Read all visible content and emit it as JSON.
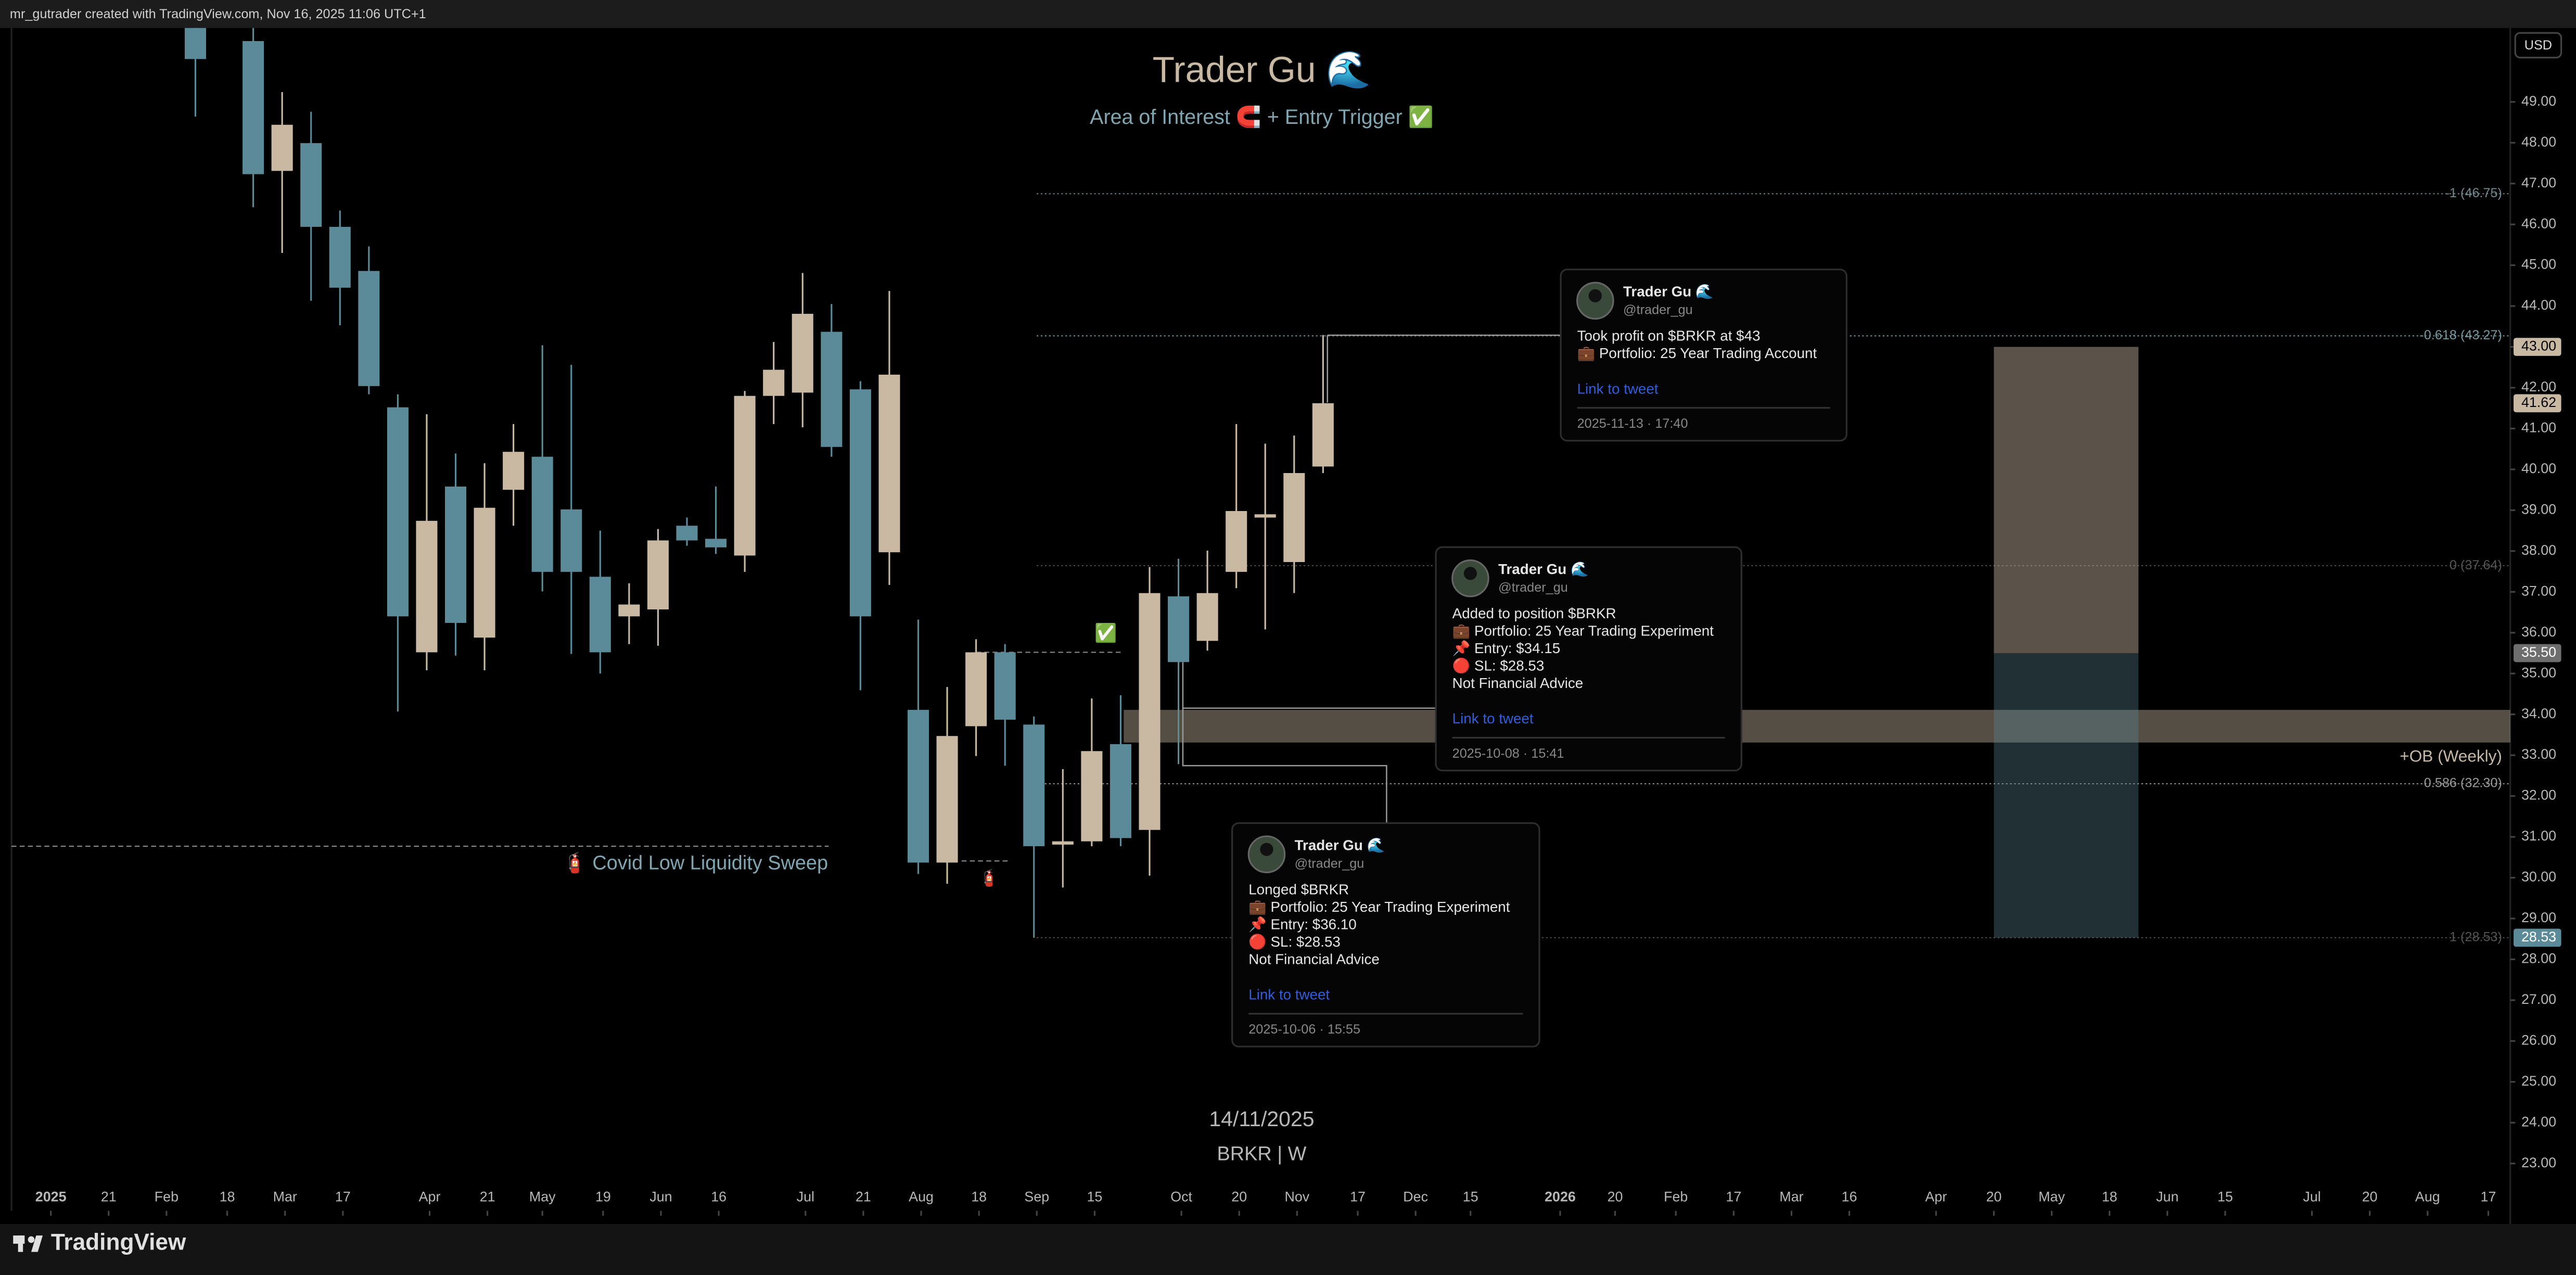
{
  "header": "mr_gutrader created with TradingView.com, Nov 16, 2025 11:06 UTC+1",
  "footer": {
    "brand": "TradingView"
  },
  "chart_data": {
    "type": "candlestick",
    "title": "Trader Gu 🌊",
    "subtitle": "Area of Interest 🧲 + Entry Trigger ✅",
    "currency": "USD",
    "watermark": [
      "14/11/2025",
      "BRKR | W"
    ],
    "colors": {
      "up": "#c9b9a3",
      "down": "#5b8a99"
    },
    "x": [
      0,
      2,
      3,
      4,
      5,
      6,
      7,
      8,
      9,
      10,
      11,
      12,
      13,
      14,
      15,
      16,
      17,
      18,
      19,
      20,
      21,
      22,
      23,
      24,
      25,
      26,
      27,
      28,
      29,
      30,
      31,
      32,
      33,
      34,
      35,
      36,
      37,
      38,
      39
    ],
    "open": [
      51.2,
      50.49,
      47.31,
      47.99,
      45.94,
      44.86,
      41.52,
      35.52,
      39.58,
      35.88,
      39.5,
      40.31,
      39.02,
      37.37,
      36.4,
      36.57,
      38.62,
      38.3,
      37.89,
      41.8,
      41.88,
      43.37,
      41.96,
      37.97,
      34.11,
      30.37,
      33.71,
      35.52,
      33.75,
      30.81,
      30.89,
      33.27,
      31.17,
      36.89,
      35.8,
      37.49,
      38.82,
      37.73,
      40.07
    ],
    "high": [
      51.4,
      50.89,
      49.24,
      48.76,
      46.34,
      45.46,
      41.84,
      41.35,
      40.39,
      40.15,
      41.11,
      43.04,
      42.56,
      38.5,
      37.21,
      38.54,
      38.82,
      39.58,
      41.92,
      43.12,
      44.81,
      44.05,
      42.16,
      44.37,
      36.32,
      34.67,
      35.84,
      35.72,
      33.95,
      32.66,
      34.39,
      34.47,
      37.61,
      37.81,
      38.01,
      41.11,
      40.63,
      40.83,
      43.29
    ],
    "low": [
      48.64,
      46.42,
      45.3,
      44.13,
      43.53,
      41.84,
      34.07,
      35.08,
      35.44,
      35.08,
      38.62,
      37.01,
      35.48,
      35.0,
      35.72,
      35.68,
      38.13,
      37.93,
      37.49,
      41.11,
      41.03,
      40.31,
      34.59,
      37.17,
      30.09,
      29.85,
      32.98,
      32.74,
      28.53,
      29.76,
      30.77,
      30.77,
      30.05,
      32.78,
      35.56,
      37.09,
      36.08,
      36.97,
      39.91
    ],
    "close": [
      50.05,
      47.23,
      48.44,
      45.94,
      44.45,
      42.04,
      36.4,
      38.74,
      36.24,
      39.06,
      40.43,
      37.49,
      37.49,
      35.52,
      36.69,
      38.26,
      38.26,
      38.09,
      41.8,
      42.44,
      43.81,
      40.55,
      36.4,
      42.32,
      30.37,
      33.47,
      35.52,
      33.87,
      30.77,
      30.89,
      33.1,
      30.97,
      36.97,
      35.28,
      36.97,
      38.98,
      38.9,
      39.91,
      41.62
    ],
    "xlim": [
      -6.36,
      80.06
    ],
    "xticks": [
      {
        "value": -5.0,
        "label": "2025"
      },
      {
        "value": -3.0,
        "label": "21"
      },
      {
        "value": -1.0,
        "label": "Feb"
      },
      {
        "value": 1.1,
        "label": "18"
      },
      {
        "value": 3.1,
        "label": "Mar"
      },
      {
        "value": 5.1,
        "label": "17"
      },
      {
        "value": 8.1,
        "label": "Apr"
      },
      {
        "value": 10.1,
        "label": "21"
      },
      {
        "value": 12.0,
        "label": "May"
      },
      {
        "value": 14.1,
        "label": "19"
      },
      {
        "value": 16.1,
        "label": "Jun"
      },
      {
        "value": 18.1,
        "label": "16"
      },
      {
        "value": 21.1,
        "label": "Jul"
      },
      {
        "value": 23.1,
        "label": "21"
      },
      {
        "value": 25.1,
        "label": "Aug"
      },
      {
        "value": 27.1,
        "label": "18"
      },
      {
        "value": 29.1,
        "label": "Sep"
      },
      {
        "value": 31.1,
        "label": "15"
      },
      {
        "value": 34.1,
        "label": "Oct"
      },
      {
        "value": 36.1,
        "label": "20"
      },
      {
        "value": 38.1,
        "label": "Nov"
      },
      {
        "value": 40.2,
        "label": "17"
      },
      {
        "value": 42.2,
        "label": "Dec"
      },
      {
        "value": 44.1,
        "label": "15"
      },
      {
        "value": 47.2,
        "label": "2026"
      },
      {
        "value": 49.1,
        "label": "20"
      },
      {
        "value": 51.2,
        "label": "Feb"
      },
      {
        "value": 53.2,
        "label": "17"
      },
      {
        "value": 55.2,
        "label": "Mar"
      },
      {
        "value": 57.2,
        "label": "16"
      },
      {
        "value": 60.2,
        "label": "Apr"
      },
      {
        "value": 62.2,
        "label": "20"
      },
      {
        "value": 64.2,
        "label": "May"
      },
      {
        "value": 66.2,
        "label": "18"
      },
      {
        "value": 68.2,
        "label": "Jun"
      },
      {
        "value": 70.2,
        "label": "15"
      },
      {
        "value": 73.2,
        "label": "Jul"
      },
      {
        "value": 75.2,
        "label": "20"
      },
      {
        "value": 77.2,
        "label": "Aug"
      },
      {
        "value": 79.3,
        "label": "17"
      }
    ],
    "ylim": [
      21.84,
      50.81
    ],
    "yticks": [
      {
        "value": 23,
        "label": "23.00"
      },
      {
        "value": 24,
        "label": "24.00"
      },
      {
        "value": 25,
        "label": "25.00"
      },
      {
        "value": 26,
        "label": "26.00"
      },
      {
        "value": 27,
        "label": "27.00"
      },
      {
        "value": 28,
        "label": "28.00"
      },
      {
        "value": 29,
        "label": "29.00"
      },
      {
        "value": 30,
        "label": "30.00"
      },
      {
        "value": 31,
        "label": "31.00"
      },
      {
        "value": 32,
        "label": "32.00"
      },
      {
        "value": 33,
        "label": "33.00"
      },
      {
        "value": 34,
        "label": "34.00"
      },
      {
        "value": 35,
        "label": "35.00"
      },
      {
        "value": 36,
        "label": "36.00"
      },
      {
        "value": 37,
        "label": "37.00"
      },
      {
        "value": 38,
        "label": "38.00"
      },
      {
        "value": 39,
        "label": "39.00"
      },
      {
        "value": 40,
        "label": "40.00"
      },
      {
        "value": 41,
        "label": "41.00"
      },
      {
        "value": 42,
        "label": "42.00"
      },
      {
        "value": 43,
        "label": "43.00"
      },
      {
        "value": 44,
        "label": "44.00"
      },
      {
        "value": 45,
        "label": "45.00"
      },
      {
        "value": 46,
        "label": "46.00"
      },
      {
        "value": 47,
        "label": "47.00"
      },
      {
        "value": 48,
        "label": "48.00"
      },
      {
        "value": 49,
        "label": "49.00"
      }
    ],
    "price_labels": [
      {
        "value": 43,
        "label": "43.00",
        "color": "#c9b9a3"
      },
      {
        "value": 41.62,
        "label": "41.62",
        "color": "#c9b9a3"
      },
      {
        "value": 35.5,
        "label": "35.50",
        "color": "#6e6e6e"
      },
      {
        "value": 28.53,
        "label": "28.53",
        "color": "#5b8a99"
      }
    ],
    "fib_levels": [
      {
        "value": 46.75,
        "label": "-1 (46.75)",
        "color": "#6f8a90"
      },
      {
        "value": 43.27,
        "label": "-0.618 (43.27)",
        "color": "#6f9aa3"
      },
      {
        "value": 37.64,
        "label": "0 (37.64)",
        "color": "#555555"
      },
      {
        "value": 32.3,
        "label": "0.586 (32.30)",
        "color": "#9a9a9a"
      },
      {
        "value": 28.53,
        "label": "1 (28.53)",
        "color": "#555555"
      }
    ],
    "ob_zone": {
      "label": "+OB (Weekly)",
      "range": [
        33.31,
        34.11
      ]
    },
    "position": {
      "x": [
        62.2,
        67.2
      ],
      "target": 43,
      "entry": 35.5,
      "stop": 28.53
    },
    "levels": [
      {
        "value": 30.77,
        "x": [
          -6.36,
          21.9
        ]
      },
      {
        "value": 30.41,
        "x": [
          26.5,
          28.1
        ]
      },
      {
        "value": 35.52,
        "x": [
          27.0,
          32.1
        ]
      }
    ],
    "annotations": [
      "🧯 Covid Low Liquidity Sweep",
      "🧯",
      "✅"
    ]
  },
  "tweets": [
    {
      "name": "Trader Gu 🌊",
      "handle": "@trader_gu",
      "lines": [
        "Took profit on $BRKR at $43",
        "💼 Portfolio: 25 Year Trading Account"
      ],
      "link": "Link to tweet",
      "time": "2025-11-13 · 17:40"
    },
    {
      "name": "Trader Gu 🌊",
      "handle": "@trader_gu",
      "lines": [
        "Added to position $BRKR",
        "💼 Portfolio: 25 Year Trading Experiment",
        "📌 Entry: $34.15",
        "🔴 SL: $28.53",
        "Not Financial Advice"
      ],
      "link": "Link to tweet",
      "time": "2025-10-08 · 15:41"
    },
    {
      "name": "Trader Gu 🌊",
      "handle": "@trader_gu",
      "lines": [
        "Longed $BRKR",
        "💼 Portfolio: 25 Year Trading Experiment",
        "📌 Entry: $36.10",
        "🔴 SL: $28.53",
        "Not Financial Advice"
      ],
      "link": "Link to tweet",
      "time": "2025-10-06 · 15:55"
    }
  ]
}
